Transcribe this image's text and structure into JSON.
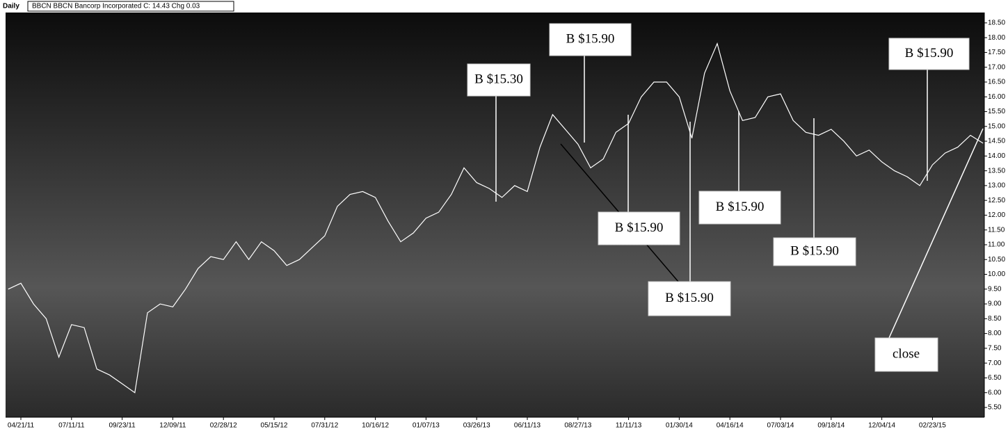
{
  "chart_data": {
    "type": "line",
    "title": "Daily",
    "subtitle": "BBCN  BBCN Bancorp Incorporated  C: 14.43  Chg 0.03",
    "color": "#ffffff",
    "categories": [
      null,
      "04/21/11",
      null,
      null,
      null,
      "07/11/11",
      null,
      null,
      null,
      "09/23/11",
      null,
      null,
      null,
      "12/09/11",
      null,
      null,
      null,
      "02/28/12",
      null,
      null,
      null,
      "05/15/12",
      null,
      null,
      null,
      "07/31/12",
      null,
      null,
      null,
      "10/16/12",
      null,
      null,
      null,
      "01/07/13",
      null,
      null,
      null,
      "03/26/13",
      null,
      null,
      null,
      "06/11/13",
      null,
      null,
      null,
      "08/27/13",
      null,
      null,
      null,
      "11/11/13",
      null,
      null,
      null,
      "01/30/14",
      null,
      null,
      null,
      "04/16/14",
      null,
      null,
      null,
      "07/03/14",
      null,
      null,
      null,
      "09/18/14",
      null,
      null,
      null,
      "12/04/14",
      null,
      null,
      null,
      "02/23/15",
      null,
      null,
      null,
      null
    ],
    "values": [
      9.5,
      9.7,
      9.0,
      8.5,
      7.2,
      8.3,
      8.2,
      6.8,
      6.6,
      6.3,
      6.0,
      8.7,
      9.0,
      8.9,
      9.5,
      10.2,
      10.6,
      10.5,
      11.1,
      10.5,
      11.1,
      10.8,
      10.3,
      10.5,
      10.9,
      11.3,
      12.3,
      12.7,
      12.8,
      12.6,
      11.8,
      11.1,
      11.4,
      11.9,
      12.1,
      12.7,
      13.6,
      13.1,
      12.9,
      12.6,
      13.0,
      12.8,
      14.3,
      15.4,
      14.9,
      14.4,
      13.6,
      13.9,
      14.8,
      15.1,
      16.0,
      16.5,
      16.5,
      16.0,
      14.6,
      16.8,
      17.8,
      16.2,
      15.2,
      15.3,
      16.0,
      16.1,
      15.2,
      14.8,
      14.7,
      14.9,
      14.5,
      14.0,
      14.2,
      13.8,
      13.5,
      13.3,
      13.0,
      13.7,
      14.1,
      14.3,
      14.7,
      14.43
    ],
    "ylim": [
      5.17,
      18.85
    ],
    "yticks": [
      {
        "value": 5.5,
        "label": "5.50"
      },
      {
        "value": 6,
        "label": "6.00"
      },
      {
        "value": 6.5,
        "label": "6.50"
      },
      {
        "value": 7,
        "label": "7.00"
      },
      {
        "value": 7.5,
        "label": "7.50"
      },
      {
        "value": 8,
        "label": "8.00"
      },
      {
        "value": 8.5,
        "label": "8.50"
      },
      {
        "value": 9,
        "label": "9.00"
      },
      {
        "value": 9.5,
        "label": "9.50"
      },
      {
        "value": 10,
        "label": "10.00"
      },
      {
        "value": 10.5,
        "label": "10.50"
      },
      {
        "value": 11,
        "label": "11.00"
      },
      {
        "value": 11.5,
        "label": "11.50"
      },
      {
        "value": 12,
        "label": "12.00"
      },
      {
        "value": 12.5,
        "label": "12.50"
      },
      {
        "value": 13,
        "label": "13.00"
      },
      {
        "value": 13.5,
        "label": "13.50"
      },
      {
        "value": 14,
        "label": "14.00"
      },
      {
        "value": 14.5,
        "label": "14.50"
      },
      {
        "value": 15,
        "label": "15.00"
      },
      {
        "value": 15.5,
        "label": "15.50"
      },
      {
        "value": 16,
        "label": "16.00"
      },
      {
        "value": 16.5,
        "label": "16.50"
      },
      {
        "value": 17,
        "label": "17.00"
      },
      {
        "value": 17.5,
        "label": "17.50"
      },
      {
        "value": 18,
        "label": "18.00"
      },
      {
        "value": 18.5,
        "label": "18.50"
      }
    ],
    "annotations": [
      "B $15.30",
      "B $15.90",
      "B $15.90",
      "B $15.90",
      "B $15.90",
      "B $15.90",
      "B $15.90",
      "close"
    ]
  }
}
